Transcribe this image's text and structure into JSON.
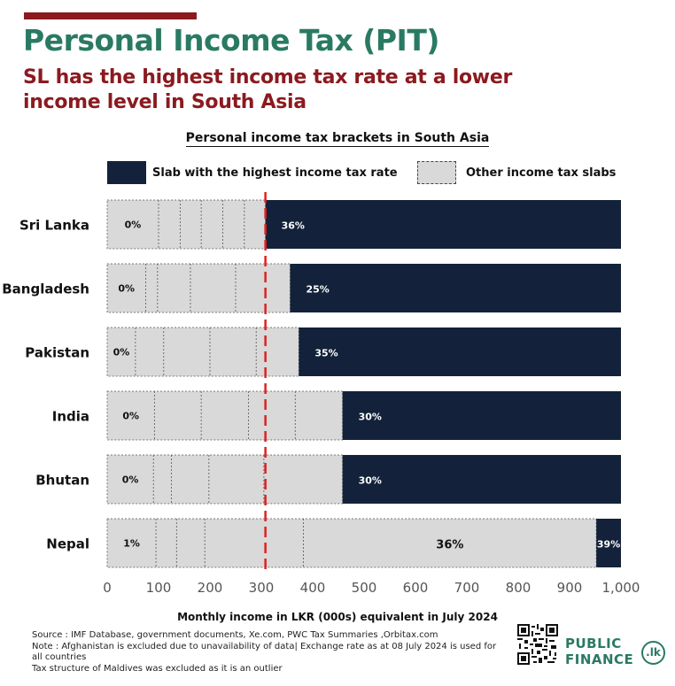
{
  "header": {
    "title": "Personal Income Tax (PIT)",
    "subtitle": "SL has the highest income tax rate at a lower income level in South Asia"
  },
  "legend": {
    "highest_label": "Slab with the highest income tax rate",
    "other_label": "Other income tax slabs"
  },
  "colors": {
    "highest_slab": "#13223a",
    "other_slabs": "#d9d9d9",
    "reference_line": "#e02020",
    "title": "#2a7a63",
    "subtitle": "#8b1a1f"
  },
  "footer": {
    "source": "Source : IMF Database, government documents, Xe.com, PWC Tax Summaries ,Orbitax.com",
    "note": "Note : Afghanistan is excluded due to unavailability of data| Exchange rate as at 08 July 2024 is used for all countries",
    "note2": "Tax structure of Maldives was excluded as it is an outlier",
    "logo_line1": "PUBLIC",
    "logo_line2": "FINANCE",
    "logo_badge": ".lk"
  },
  "chart_data": {
    "type": "bar",
    "orientation": "horizontal-stacked",
    "title": "Personal income tax brackets in South Asia",
    "xlabel": "Monthly income in LKR (000s) equivalent in July 2024",
    "xlim": [
      0,
      1000
    ],
    "xticks": [
      0,
      100,
      200,
      300,
      400,
      500,
      600,
      700,
      800,
      900,
      1000
    ],
    "xtick_labels": [
      "0",
      "100",
      "200",
      "300",
      "400",
      "500",
      "600",
      "700",
      "800",
      "900",
      "1,000"
    ],
    "reference_line_x": 308,
    "grid": false,
    "legend_position": "top",
    "categories": [
      "Sri Lanka",
      "Bangladesh",
      "Pakistan",
      "India",
      "Bhutan",
      "Nepal"
    ],
    "rows": [
      {
        "country": "Sri Lanka",
        "slab_boundaries": [
          100,
          142,
          183,
          225,
          267
        ],
        "highest_start": 308,
        "first_label": "0%",
        "highest_label": "36%"
      },
      {
        "country": "Bangladesh",
        "slab_boundaries": [
          75,
          98,
          162,
          250
        ],
        "highest_start": 356,
        "first_label": "0%",
        "highest_label": "25%"
      },
      {
        "country": "Pakistan",
        "slab_boundaries": [
          55,
          110,
          200,
          290
        ],
        "highest_start": 373,
        "first_label": "0%",
        "highest_label": "35%"
      },
      {
        "country": "India",
        "slab_boundaries": [
          92,
          183,
          275,
          366
        ],
        "highest_start": 458,
        "first_label": "0%",
        "highest_label": "30%"
      },
      {
        "country": "Bhutan",
        "slab_boundaries": [
          90,
          125,
          198,
          305
        ],
        "highest_start": 458,
        "first_label": "0%",
        "highest_label": "30%"
      },
      {
        "country": "Nepal",
        "slab_boundaries": [
          95,
          135,
          190,
          382
        ],
        "highest_start": 952,
        "first_label": "1%",
        "second_last_label": "36%",
        "highest_label": "39%"
      }
    ]
  }
}
